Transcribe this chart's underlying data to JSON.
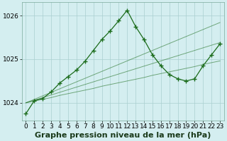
{
  "title": "Graphe pression niveau de la mer (hPa)",
  "background_color": "#d4eef0",
  "grid_color": "#aacfcf",
  "line_color": "#1a6b1a",
  "hours": [
    0,
    1,
    2,
    3,
    4,
    5,
    6,
    7,
    8,
    9,
    10,
    11,
    12,
    13,
    14,
    15,
    16,
    17,
    18,
    19,
    20,
    21,
    22,
    23
  ],
  "main_line": [
    1023.75,
    1024.05,
    1024.1,
    1024.25,
    1024.45,
    1024.6,
    1024.75,
    1024.95,
    1025.2,
    1025.45,
    1025.65,
    1025.88,
    1026.12,
    1025.75,
    1025.45,
    1025.1,
    1024.85,
    1024.65,
    1024.55,
    1024.5,
    1024.55,
    1024.85,
    1025.1,
    1025.35
  ],
  "straight1": [
    1024.0,
    1024.04,
    1024.08,
    1024.12,
    1024.17,
    1024.21,
    1024.25,
    1024.29,
    1024.33,
    1024.38,
    1024.42,
    1024.46,
    1024.5,
    1024.54,
    1024.58,
    1024.63,
    1024.67,
    1024.71,
    1024.75,
    1024.79,
    1024.83,
    1024.88,
    1024.92,
    1024.96
  ],
  "straight2": [
    1024.0,
    1024.06,
    1024.12,
    1024.18,
    1024.24,
    1024.3,
    1024.36,
    1024.42,
    1024.48,
    1024.54,
    1024.6,
    1024.66,
    1024.72,
    1024.78,
    1024.84,
    1024.9,
    1024.96,
    1025.02,
    1025.08,
    1025.14,
    1025.2,
    1025.26,
    1025.32,
    1025.38
  ],
  "straight3": [
    1024.0,
    1024.08,
    1024.16,
    1024.24,
    1024.32,
    1024.4,
    1024.48,
    1024.56,
    1024.64,
    1024.72,
    1024.8,
    1024.88,
    1024.96,
    1025.04,
    1025.12,
    1025.2,
    1025.28,
    1025.36,
    1025.44,
    1025.52,
    1025.6,
    1025.68,
    1025.76,
    1025.84
  ],
  "ylim": [
    1023.6,
    1026.3
  ],
  "yticks": [
    1024,
    1025,
    1026
  ],
  "title_fontsize": 8.0,
  "tick_fontsize": 6.5
}
